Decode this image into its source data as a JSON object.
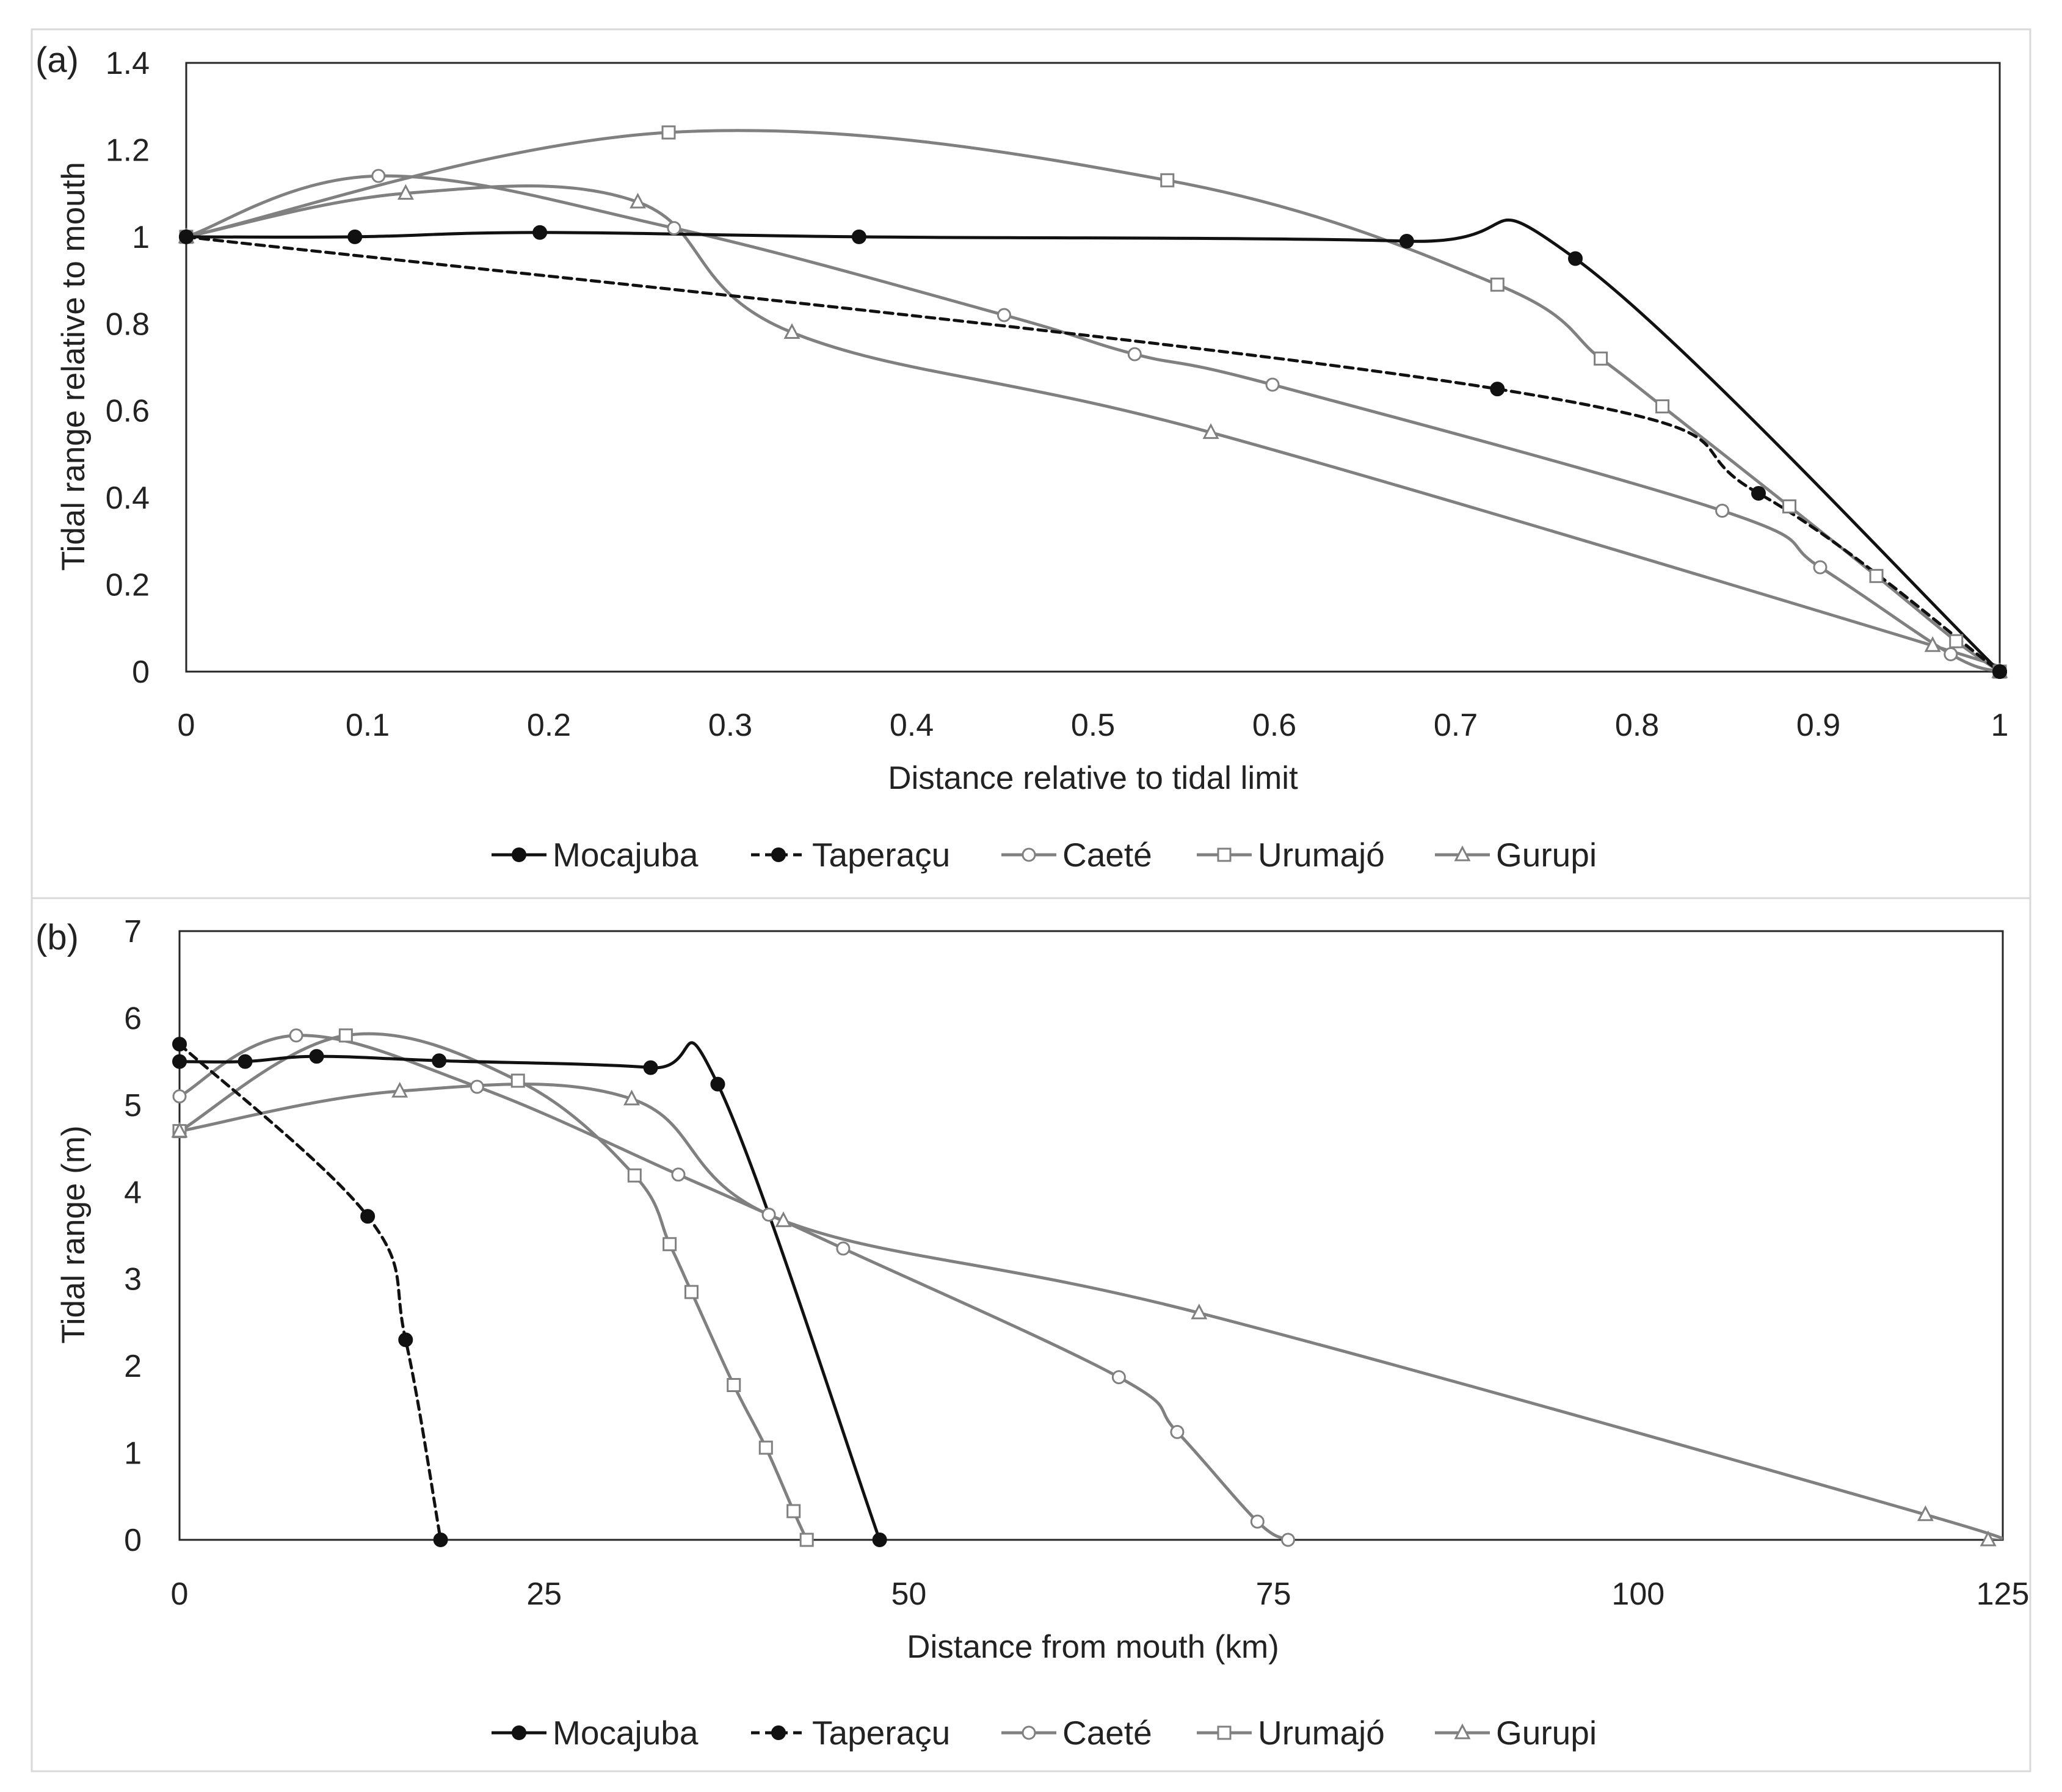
{
  "chart_data": [
    {
      "panel_label": "(a)",
      "type": "line",
      "title": "",
      "xlabel": "Distance relative to tidal limit",
      "ylabel": "Tidal range relative to mouth",
      "xlim": [
        0,
        1
      ],
      "ylim": [
        0,
        1.4
      ],
      "xticks": [
        "0",
        "0.1",
        "0.2",
        "0.3",
        "0.4",
        "0.5",
        "0.6",
        "0.7",
        "0.8",
        "0.9",
        "1"
      ],
      "yticks": [
        "0",
        "0.2",
        "0.4",
        "0.6",
        "0.8",
        "1",
        "1.2",
        "1.4"
      ],
      "legend_position": "bottom",
      "series": [
        {
          "name": "Mocajuba",
          "color": "#111111",
          "dash": "solid",
          "marker": "filled-circle",
          "x": [
            0,
            0.093,
            0.195,
            0.371,
            0.673,
            0.766,
            1.0
          ],
          "y": [
            1.0,
            1.0,
            1.01,
            1.0,
            0.99,
            0.95,
            0.0
          ]
        },
        {
          "name": "Taperaçu",
          "color": "#111111",
          "dash": "dashed",
          "marker": "filled-circle",
          "x": [
            0,
            0.723,
            0.867,
            1.0
          ],
          "y": [
            1.0,
            0.65,
            0.41,
            0.0
          ]
        },
        {
          "name": "Caeté",
          "color": "#808080",
          "dash": "solid",
          "marker": "open-circle",
          "x": [
            0,
            0.106,
            0.269,
            0.451,
            0.523,
            0.599,
            0.847,
            0.901,
            0.973,
            1.0
          ],
          "y": [
            1.0,
            1.14,
            1.02,
            0.82,
            0.73,
            0.66,
            0.37,
            0.24,
            0.04,
            0.0
          ]
        },
        {
          "name": "Urumajó",
          "color": "#808080",
          "dash": "solid",
          "marker": "open-square",
          "x": [
            0,
            0.266,
            0.541,
            0.723,
            0.78,
            0.814,
            0.884,
            0.932,
            0.976,
            1.0
          ],
          "y": [
            1.0,
            1.24,
            1.13,
            0.89,
            0.72,
            0.61,
            0.38,
            0.22,
            0.07,
            0.0
          ]
        },
        {
          "name": "Gurupi",
          "color": "#808080",
          "dash": "solid",
          "marker": "open-triangle",
          "x": [
            0,
            0.121,
            0.249,
            0.334,
            0.565,
            0.963,
            1.0
          ],
          "y": [
            1.0,
            1.1,
            1.08,
            0.78,
            0.55,
            0.06,
            0.0
          ]
        }
      ]
    },
    {
      "panel_label": "(b)",
      "type": "line",
      "title": "",
      "xlabel": "Distance from mouth (km)",
      "ylabel": "Tidal range (m)",
      "xlim": [
        0,
        125
      ],
      "ylim": [
        0,
        7
      ],
      "xticks": [
        "0",
        "25",
        "50",
        "75",
        "100",
        "125"
      ],
      "yticks": [
        "0",
        "1",
        "2",
        "3",
        "4",
        "5",
        "6",
        "7"
      ],
      "legend_position": "bottom",
      "series": [
        {
          "name": "Mocajuba",
          "color": "#111111",
          "dash": "solid",
          "marker": "filled-circle",
          "x": [
            0,
            4.5,
            9.4,
            17.8,
            32.3,
            36.9,
            48.0
          ],
          "y": [
            5.5,
            5.5,
            5.56,
            5.51,
            5.43,
            5.24,
            0.0
          ]
        },
        {
          "name": "Taperaçu",
          "color": "#111111",
          "dash": "dashed",
          "marker": "filled-circle",
          "x": [
            0,
            12.9,
            15.5,
            17.9
          ],
          "y": [
            5.7,
            3.72,
            2.3,
            0.0
          ]
        },
        {
          "name": "Caeté",
          "color": "#808080",
          "dash": "solid",
          "marker": "open-circle",
          "x": [
            0,
            8.0,
            20.4,
            34.2,
            40.4,
            45.5,
            64.4,
            68.4,
            73.9,
            76.0
          ],
          "y": [
            5.1,
            5.8,
            5.21,
            4.2,
            3.74,
            3.35,
            1.87,
            1.24,
            0.21,
            0.0
          ]
        },
        {
          "name": "Urumajó",
          "color": "#808080",
          "dash": "solid",
          "marker": "open-square",
          "x": [
            0,
            11.4,
            23.2,
            31.2,
            33.6,
            35.1,
            38.0,
            40.2,
            42.1,
            43.0
          ],
          "y": [
            4.7,
            5.8,
            5.28,
            4.19,
            3.4,
            2.85,
            1.78,
            1.06,
            0.33,
            0.0
          ]
        },
        {
          "name": "Gurupi",
          "color": "#808080",
          "dash": "solid",
          "marker": "open-triangle",
          "x": [
            0,
            15.1,
            31.0,
            41.4,
            69.9,
            119.7,
            124.0
          ],
          "y": [
            4.7,
            5.16,
            5.07,
            3.67,
            2.61,
            0.29,
            0.0
          ]
        }
      ]
    }
  ]
}
